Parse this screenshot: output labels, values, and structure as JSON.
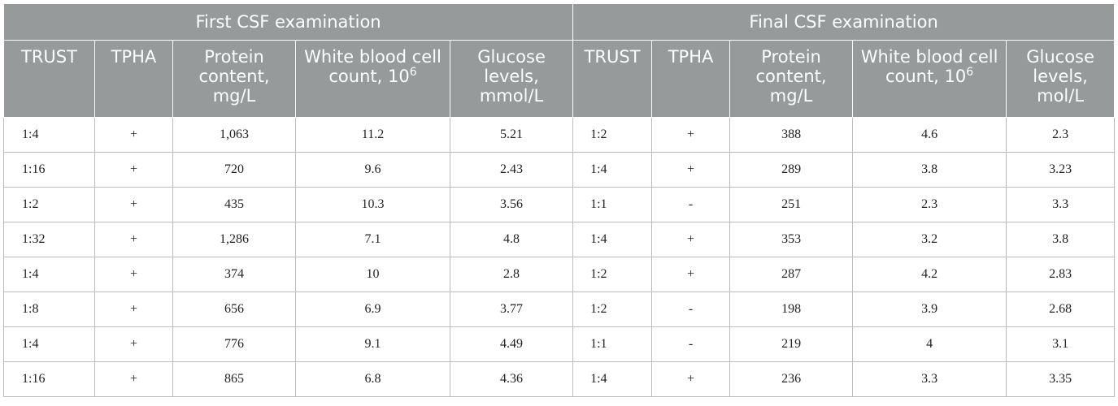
{
  "table": {
    "group_headers": [
      "First CSF examination",
      "Final CSF examination"
    ],
    "column_headers": [
      {
        "text": "TRUST",
        "sup": ""
      },
      {
        "text": "TPHA",
        "sup": ""
      },
      {
        "text": "Protein content, mg/L",
        "sup": ""
      },
      {
        "text": "White blood cell count, 10",
        "sup": "6"
      },
      {
        "text": "Glucose levels, mmol/L",
        "sup": ""
      },
      {
        "text": "TRUST",
        "sup": ""
      },
      {
        "text": "TPHA",
        "sup": ""
      },
      {
        "text": "Protein content, mg/L",
        "sup": ""
      },
      {
        "text": "White blood cell count, 10",
        "sup": "6"
      },
      {
        "text": "Glucose levels, mol/L",
        "sup": ""
      }
    ],
    "rows": [
      [
        "1:4",
        "+",
        "1,063",
        "11.2",
        "5.21",
        "1:2",
        "+",
        "388",
        "4.6",
        "2.3"
      ],
      [
        "1:16",
        "+",
        "720",
        "9.6",
        "2.43",
        "1:4",
        "+",
        "289",
        "3.8",
        "3.23"
      ],
      [
        "1:2",
        "+",
        "435",
        "10.3",
        "3.56",
        "1:1",
        "-",
        "251",
        "2.3",
        "3.3"
      ],
      [
        "1:32",
        "+",
        "1,286",
        "7.1",
        "4.8",
        "1:4",
        "+",
        "353",
        "3.2",
        "3.8"
      ],
      [
        "1:4",
        "+",
        "374",
        "10",
        "2.8",
        "1:2",
        "+",
        "287",
        "4.2",
        "2.83"
      ],
      [
        "1:8",
        "+",
        "656",
        "6.9",
        "3.77",
        "1:2",
        "-",
        "198",
        "3.9",
        "2.68"
      ],
      [
        "1:4",
        "+",
        "776",
        "9.1",
        "4.49",
        "1:1",
        "-",
        "219",
        "4",
        "3.1"
      ],
      [
        "1:16",
        "+",
        "865",
        "6.8",
        "4.36",
        "1:4",
        "+",
        "236",
        "3.3",
        "3.35"
      ]
    ]
  }
}
